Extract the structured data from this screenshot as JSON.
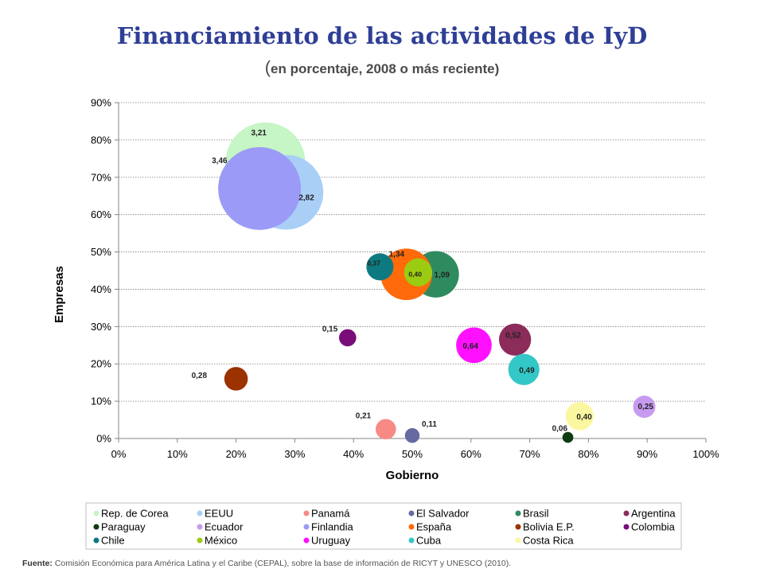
{
  "title": "Financiamiento de las actividades de IyD",
  "subtitle_paren": "(",
  "subtitle": "en porcentaje, 2008 o más reciente)",
  "source_label": "Fuente:",
  "source_text": " Comisión Económica para América Latina y el Caribe (CEPAL), sobre la base de información de RICYT y UNESCO (2010).",
  "chart_data": {
    "type": "bubble",
    "xlabel": "Gobierno",
    "ylabel": "Empresas",
    "xlim": [
      0,
      100
    ],
    "ylim": [
      0,
      90
    ],
    "x_ticks": [
      "0%",
      "10%",
      "20%",
      "30%",
      "40%",
      "50%",
      "60%",
      "70%",
      "80%",
      "90%",
      "100%"
    ],
    "y_ticks": [
      "0%",
      "10%",
      "20%",
      "30%",
      "40%",
      "50%",
      "60%",
      "70%",
      "80%",
      "90%"
    ],
    "grid": "horizontal dotted",
    "legend_position": "bottom",
    "series": [
      {
        "name": "Rep. de Corea",
        "x": 25,
        "y": 74,
        "size": 3.21,
        "label": "3,21",
        "color": "#c6f5c6"
      },
      {
        "name": "EEUU",
        "x": 28.5,
        "y": 66,
        "size": 2.82,
        "label": "2,82",
        "color": "#a9cff7"
      },
      {
        "name": "Panamá",
        "x": 45.5,
        "y": 2.5,
        "size": 0.21,
        "label": "0,21",
        "color": "#f78a85"
      },
      {
        "name": "El Salvador",
        "x": 50,
        "y": 0.8,
        "size": 0.11,
        "label": "0,11",
        "color": "#676aa1"
      },
      {
        "name": "Brasil",
        "x": 54,
        "y": 44,
        "size": 1.09,
        "label": "1,09",
        "color": "#2e8b60"
      },
      {
        "name": "Argentina",
        "x": 67.5,
        "y": 26.5,
        "size": 0.52,
        "label": "0,52",
        "color": "#8b2c5a"
      },
      {
        "name": "Paraguay",
        "x": 76.5,
        "y": 0.3,
        "size": 0.06,
        "label": "0,06",
        "color": "#0d3b14"
      },
      {
        "name": "Ecuador",
        "x": 89.5,
        "y": 8.5,
        "size": 0.25,
        "label": "0,25",
        "color": "#c79af0"
      },
      {
        "name": "Finlandia",
        "x": 24,
        "y": 67,
        "size": 3.46,
        "label": "3,46",
        "color": "#9b9bf7"
      },
      {
        "name": "España",
        "x": 49,
        "y": 44,
        "size": 1.34,
        "label": "1,34",
        "color": "#ff6a0a"
      },
      {
        "name": "Bolivia E.P.",
        "x": 20,
        "y": 16,
        "size": 0.28,
        "label": "0,28",
        "color": "#9b3200"
      },
      {
        "name": "Colombia",
        "x": 39,
        "y": 27,
        "size": 0.15,
        "label": "0,15",
        "color": "#7a0d7a"
      },
      {
        "name": "Chile",
        "x": 44.5,
        "y": 46,
        "size": 0.37,
        "label": "0,37",
        "color": "#0c7a80"
      },
      {
        "name": "México",
        "x": 51,
        "y": 44.5,
        "size": 0.4,
        "label": "0,40",
        "color": "#9ccc11"
      },
      {
        "name": "Uruguay",
        "x": 60.5,
        "y": 25,
        "size": 0.64,
        "label": "0,64",
        "color": "#ff10ff"
      },
      {
        "name": "Cuba",
        "x": 69,
        "y": 18.5,
        "size": 0.49,
        "label": "0,49",
        "color": "#33c7c7"
      },
      {
        "name": "Costa Rica",
        "x": 78.5,
        "y": 6,
        "size": 0.4,
        "label": "0,40",
        "color": "#fbf7a0"
      }
    ],
    "legend_order": [
      "Rep. de Corea",
      "EEUU",
      "Panamá",
      "El Salvador",
      "Brasil",
      "Argentina",
      "Paraguay",
      "Ecuador",
      "Finlandia",
      "España",
      "Bolivia E.P.",
      "Colombia",
      "Chile",
      "México",
      "Uruguay",
      "Cuba",
      "Costa Rica"
    ]
  }
}
